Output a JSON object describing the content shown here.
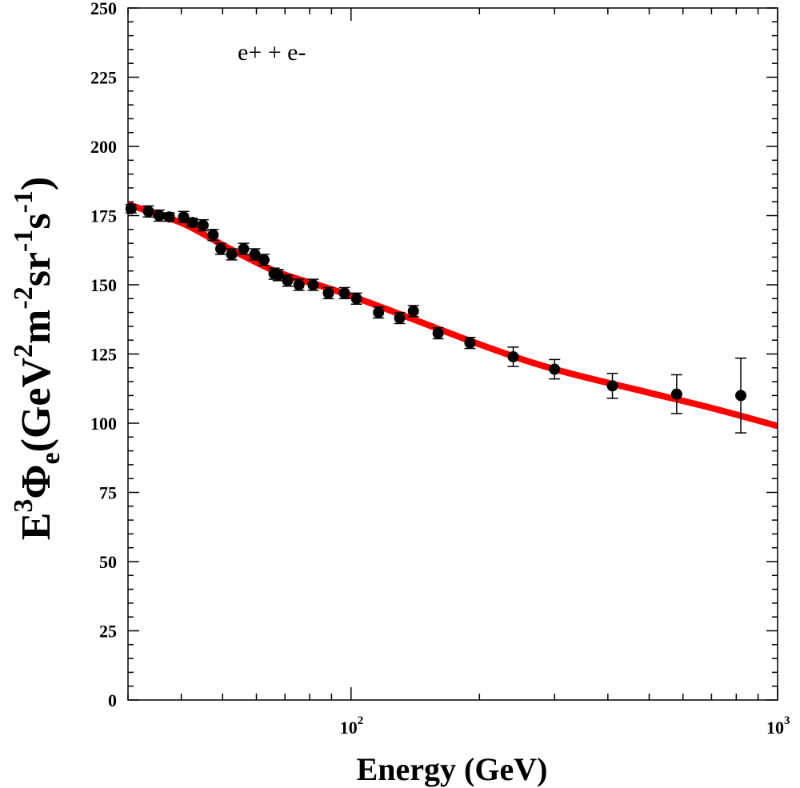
{
  "chart_data": {
    "type": "scatter",
    "title": "",
    "annotation": "e+ + e-",
    "xlabel": "Energy (GeV)",
    "ylabel": {
      "base": "E",
      "base_sup": "3",
      "phi": "Φ",
      "phi_sub": "e",
      "open": "(GeV",
      "gev_sup": "2",
      "m": "m",
      "m_sup": "-2",
      "sr": "sr",
      "sr_sup": "-1",
      "s": "s",
      "s_sup": "-1",
      "close": ")"
    },
    "xscale": "log",
    "xlim": [
      30,
      1000
    ],
    "ylim": [
      0,
      250
    ],
    "x_major_ticks": [
      {
        "value": 100,
        "base": "10",
        "exp": "2"
      },
      {
        "value": 1000,
        "base": "10",
        "exp": "3"
      }
    ],
    "y_ticks": [
      0,
      25,
      50,
      75,
      100,
      125,
      150,
      175,
      200,
      225,
      250
    ],
    "series": [
      {
        "name": "e+ + e- data",
        "style": "points",
        "color": "#000000",
        "x": [
          30.5,
          33.5,
          35.5,
          37.5,
          40.5,
          42.5,
          45.0,
          47.5,
          49.5,
          52.5,
          56.0,
          59.5,
          62.5,
          66.0,
          67.5,
          71.0,
          75.5,
          81.5,
          88.5,
          96.5,
          103.0,
          116.0,
          130.0,
          140.0,
          160.0,
          190.0,
          240.0,
          300.0,
          410.0,
          580.0,
          820.0
        ],
        "y": [
          177.5,
          176.5,
          175.0,
          174.5,
          174.5,
          172.5,
          171.5,
          168.0,
          163.0,
          161.0,
          163.0,
          161.0,
          159.0,
          154.0,
          153.5,
          151.5,
          150.0,
          150.0,
          147.0,
          147.0,
          145.0,
          140.0,
          138.0,
          140.5,
          132.5,
          129.0,
          124.0,
          119.5,
          113.5,
          110.5,
          110.0
        ],
        "err": [
          1.5,
          2.0,
          2.0,
          1.5,
          2.0,
          1.5,
          2.0,
          2.0,
          2.0,
          2.0,
          2.0,
          2.0,
          2.0,
          2.0,
          2.0,
          2.0,
          2.0,
          2.0,
          2.0,
          2.0,
          2.0,
          2.0,
          2.0,
          2.0,
          2.0,
          2.0,
          3.5,
          3.5,
          4.5,
          7.0,
          13.5
        ]
      },
      {
        "name": "fit",
        "style": "line",
        "color": "#ff0000",
        "x": [
          30,
          40,
          50,
          60,
          70,
          100,
          200,
          300,
          500,
          700,
          1000
        ],
        "y": [
          179,
          172.4,
          164.4,
          158.1,
          153.6,
          146.0,
          128.5,
          119.5,
          111.0,
          105.5,
          99.0
        ]
      }
    ]
  }
}
